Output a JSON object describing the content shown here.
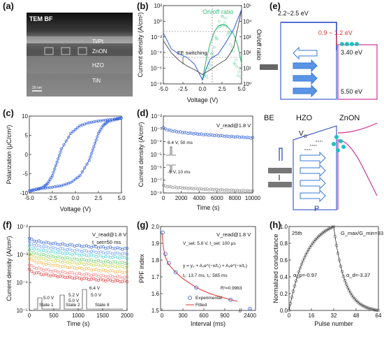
{
  "panel_labels": [
    "(a)",
    "(b)",
    "(c)",
    "(d)",
    "(e)",
    "(f)",
    "(g)",
    "(h)"
  ],
  "colors": {
    "blue": "#2a5bd6",
    "green": "#3fbf7f",
    "gray": "#555555",
    "red": "#e03030",
    "magenta": "#cc3399",
    "orange": "#ff8c00",
    "cyan": "#1fbfbf"
  },
  "chart_data": [
    {
      "id": "a",
      "type": "image",
      "text": {
        "corner": "TEM BF",
        "tipt": "Ti/Pt",
        "zonon": "ZnON",
        "hzo": "HZO",
        "tin": "TiN",
        "scale": "20 nm"
      }
    },
    {
      "id": "b",
      "type": "line",
      "xlabel": "Voltage (V)",
      "ylabel": "Current density (A/cm²)",
      "ylabel2": "On/off ratio",
      "xlim": [
        -5,
        5
      ],
      "xticks": [
        -5.0,
        -2.5,
        0.0,
        2.5,
        5.0
      ],
      "yticks": [
        "10²",
        "10⁰",
        "10⁻²",
        "10⁻⁴",
        "10⁻⁶",
        "10⁻⁸"
      ],
      "yticks2": [
        "10⁵",
        "10⁴",
        "10³",
        "10²",
        "10¹",
        "10⁰"
      ],
      "annotation": "FE switching",
      "series": [
        {
          "name": "On/off ratio",
          "color": "green",
          "x": [
            0,
            0.5,
            1.0,
            1.5,
            2.0,
            2.5,
            3.0,
            3.5,
            4.0,
            4.5,
            5.0
          ],
          "y": [
            2,
            40,
            400,
            2000,
            5000,
            6000,
            5500,
            3000,
            1500,
            300,
            20
          ]
        },
        {
          "color": "blue",
          "x": [
            -5,
            -4,
            -3,
            -2,
            -1,
            -0.5,
            0,
            0.5,
            1,
            2,
            3,
            4,
            5
          ],
          "y": [
            -1.5,
            -3.5,
            -4.2,
            -4.6,
            -5.5,
            -6.5,
            -7.5,
            -6.0,
            -4.8,
            -4.2,
            -2.7,
            -1.0,
            1.5
          ]
        },
        {
          "color": "gray",
          "x": [
            -5,
            -4,
            -3,
            -2,
            -1,
            0,
            1,
            2,
            3,
            3.5,
            4,
            5
          ],
          "y": [
            -2.5,
            -4.0,
            -5.0,
            -5.7,
            -6.2,
            -6.8,
            -6.2,
            -5.5,
            -4.9,
            -4.2,
            -3.3,
            1.5
          ]
        }
      ]
    },
    {
      "id": "c",
      "type": "line",
      "xlabel": "Voltage (V)",
      "ylabel": "Polarization (μC/cm²)",
      "xlim": [
        -5,
        5
      ],
      "ylim": [
        -10,
        10
      ],
      "xticks": [
        -5.0,
        -2.5,
        0.0,
        2.5,
        5.0
      ],
      "yticks": [
        10,
        5,
        0,
        -5,
        -10
      ],
      "series": [
        {
          "name": "loop",
          "color": "blue",
          "x": [
            -5,
            -4.5,
            -3.5,
            -2.5,
            -1.5,
            -0.5,
            0.5,
            1.5,
            2,
            2.5,
            3,
            3.5,
            4.5,
            5,
            4.5,
            3.5,
            2.5,
            1.5,
            0.5,
            -0.5,
            -1.5,
            -2,
            -2.5,
            -3,
            -3.5,
            -4.5,
            -5
          ],
          "y": [
            -9.5,
            -9.2,
            -8.8,
            -8.5,
            -8.1,
            -7.3,
            -5.5,
            -1.5,
            2,
            5.5,
            7.5,
            8.5,
            9.2,
            9.5,
            9.3,
            9.0,
            8.7,
            8.3,
            7.5,
            5.5,
            1.5,
            -2,
            -5.5,
            -7.5,
            -8.5,
            -9.2,
            -9.5
          ]
        }
      ]
    },
    {
      "id": "d",
      "type": "scatter",
      "xlabel": "Time (s)",
      "ylabel": "Current density (A/cm²)",
      "xlim": [
        0,
        10000
      ],
      "xticks": [
        0,
        2000,
        4000,
        6000,
        8000,
        10000
      ],
      "yticks": [
        "10⁻²",
        "10⁻³",
        "10⁻⁴",
        "10⁻⁵",
        "10⁻⁶",
        "10⁻⁷",
        "10⁻⁸"
      ],
      "annotations": [
        "V_read@1.8 V",
        "6.4 V, 50 ms",
        "-5 V, 10 ms"
      ],
      "series": [
        {
          "color": "blue",
          "logy_start": -2.9,
          "logy_end": -3.7
        },
        {
          "color": "gray",
          "logy_start": -7.4,
          "logy_end": -7.85
        }
      ]
    },
    {
      "id": "e",
      "type": "diagram",
      "text": {
        "top_gap": "2.2~2.5 eV",
        "offset": "0.9 ~ 1.2 eV",
        "cb": "3.40 eV",
        "vb": "5.50 eV",
        "be": "BE",
        "hzo": "HZO",
        "znon": "ZnON",
        "vo": "V",
        "vo_sub": "O",
        "p": "P"
      }
    },
    {
      "id": "f",
      "type": "scatter",
      "xlabel": "Time (s)",
      "ylabel": "Current density (A/cm²)",
      "xlim": [
        0,
        2000
      ],
      "xticks": [
        0,
        500,
        1000,
        1500,
        2000
      ],
      "yticks": [
        "10⁻²",
        "10⁻³",
        "10⁻⁴",
        "10⁻⁵"
      ],
      "annotations": [
        "V_read@1.8 V",
        "t_set=50 ms"
      ],
      "pulse_labels": [
        "5.0 V",
        "5.0 V",
        "5.2 V",
        "5.0 V",
        "6.4 V",
        "State 1",
        "State 2",
        "State 8"
      ],
      "series_colors": [
        "#2a5bd6",
        "#6a9cff",
        "#4bcfcf",
        "#6ad16a",
        "#c4d44c",
        "#ffb347",
        "#ff7b7b",
        "#e03030"
      ],
      "series_logy_start": [
        -2.45,
        -2.6,
        -2.75,
        -2.9,
        -3.05,
        -3.2,
        -3.45,
        -3.65
      ],
      "series_logy_end": [
        -2.85,
        -3.05,
        -3.2,
        -3.4,
        -3.55,
        -3.75,
        -3.95,
        -4.1
      ]
    },
    {
      "id": "g",
      "type": "scatter",
      "xlabel": "Interval (ms)",
      "ylabel": "PPF index",
      "xticks": [
        "0",
        "300",
        "600",
        "900",
        "2400"
      ],
      "yticks": [
        2.0,
        1.9,
        1.8,
        1.7,
        1.6,
        1.5
      ],
      "annotations": [
        "V_read@1.8 V",
        "V_set: 5.8 V, t_set: 100 μs",
        "y = y₀ + A₁e^(−x/t₁) + A₂e^(−x/t₂)",
        "t₁: 13.7 ms, t₂: 585 ms",
        "R²=0.9963"
      ],
      "legend": [
        "Experimental",
        "Fitted"
      ],
      "experimental": {
        "x": [
          10,
          50,
          100,
          200,
          500,
          1000,
          2400
        ],
        "y": [
          1.96,
          1.82,
          1.76,
          1.7,
          1.6,
          1.52,
          1.46
        ]
      },
      "fitted": {
        "x": [
          0,
          20,
          50,
          100,
          200,
          300,
          500,
          700,
          1000,
          1100
        ],
        "y": [
          1.96,
          1.86,
          1.8,
          1.75,
          1.7,
          1.66,
          1.6,
          1.56,
          1.52,
          1.51
        ]
      }
    },
    {
      "id": "h",
      "type": "scatter",
      "xlabel": "Pulse number",
      "ylabel": "Normalized conductance",
      "xlim": [
        0,
        64
      ],
      "ylim": [
        0,
        1
      ],
      "xticks": [
        0,
        16,
        32,
        48,
        64
      ],
      "yticks": [
        1.0,
        0.8,
        0.6,
        0.4,
        0.2,
        0.0
      ],
      "annotations": [
        "25th",
        "G_max/G_min=33.3",
        "α_p=-0.97",
        "α_d=-3.37"
      ],
      "nonlinearity": {
        "alpha_p": -0.97,
        "alpha_d": -3.37
      }
    }
  ]
}
